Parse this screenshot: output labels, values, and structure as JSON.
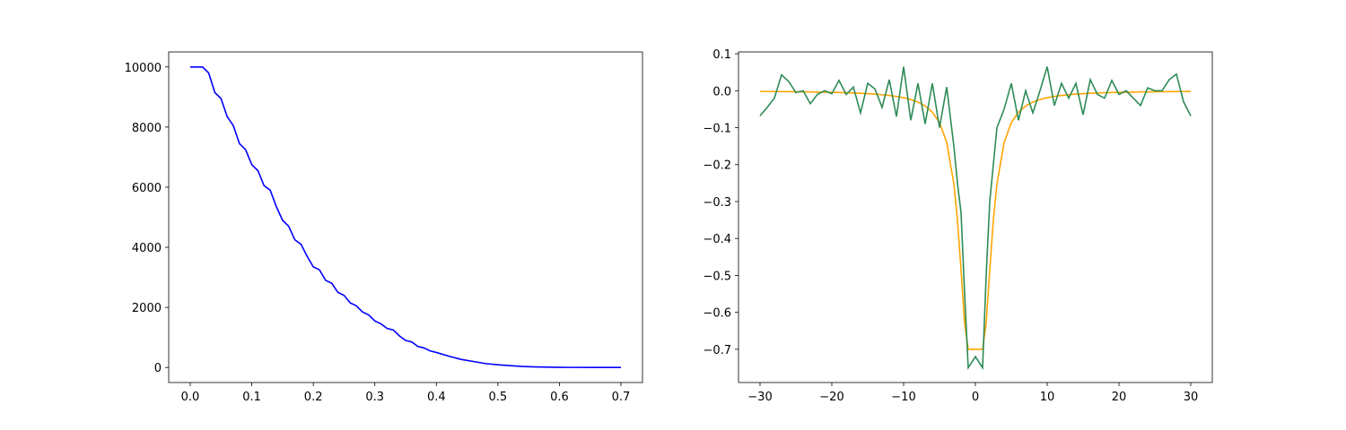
{
  "chart_data": [
    {
      "type": "line",
      "color": "#0000ff",
      "x": [
        0,
        0.02,
        0.03,
        0.04,
        0.05,
        0.06,
        0.07,
        0.08,
        0.09,
        0.1,
        0.11,
        0.12,
        0.13,
        0.14,
        0.15,
        0.16,
        0.17,
        0.18,
        0.19,
        0.2,
        0.21,
        0.22,
        0.23,
        0.24,
        0.25,
        0.26,
        0.27,
        0.28,
        0.29,
        0.3,
        0.31,
        0.32,
        0.33,
        0.34,
        0.35,
        0.36,
        0.37,
        0.38,
        0.39,
        0.4,
        0.42,
        0.44,
        0.46,
        0.48,
        0.5,
        0.52,
        0.54,
        0.56,
        0.58,
        0.6,
        0.62,
        0.65,
        0.7
      ],
      "values": [
        10000,
        10000,
        9800,
        9150,
        8950,
        8350,
        8050,
        7450,
        7250,
        6750,
        6550,
        6050,
        5900,
        5350,
        4900,
        4700,
        4250,
        4100,
        3700,
        3350,
        3250,
        2900,
        2800,
        2500,
        2400,
        2150,
        2050,
        1850,
        1750,
        1550,
        1450,
        1300,
        1250,
        1050,
        900,
        850,
        700,
        650,
        550,
        500,
        380,
        270,
        200,
        130,
        90,
        60,
        35,
        20,
        12,
        6,
        3,
        1,
        0
      ],
      "xlim": [
        -0.035,
        0.735
      ],
      "ylim": [
        -500,
        10500
      ],
      "xticks": [
        {
          "value": 0,
          "label": "0.0"
        },
        0.1,
        0.2,
        0.3,
        0.4,
        0.5,
        0.6,
        0.7
      ],
      "yticks": [
        0,
        2000,
        4000,
        6000,
        8000,
        10000
      ]
    },
    {
      "type": "line",
      "x": [
        -30,
        -29,
        -28,
        -27,
        -26,
        -25,
        -24,
        -23,
        -22,
        -21,
        -20,
        -19,
        -18,
        -17,
        -16,
        -15,
        -14,
        -13,
        -12,
        -11,
        -10,
        -9,
        -8,
        -7,
        -6,
        -5,
        -4,
        -3,
        -2.5,
        -2,
        -1.5,
        -1,
        0,
        1,
        1.5,
        2,
        2.5,
        3,
        4,
        5,
        6,
        7,
        8,
        9,
        10,
        11,
        12,
        13,
        14,
        15,
        16,
        17,
        18,
        19,
        20,
        21,
        22,
        23,
        24,
        25,
        26,
        27,
        28,
        29,
        30
      ],
      "series": [
        {
          "color": "#ffa500",
          "values": [
            -0.0019,
            -0.002,
            -0.0022,
            -0.0023,
            -0.0025,
            -0.0027,
            -0.003,
            -0.0032,
            -0.0036,
            -0.0039,
            -0.0043,
            -0.0048,
            -0.0054,
            -0.0061,
            -0.0069,
            -0.0079,
            -0.0092,
            -0.0108,
            -0.0128,
            -0.0154,
            -0.0189,
            -0.0238,
            -0.0307,
            -0.0412,
            -0.0578,
            -0.0863,
            -0.14,
            -0.252,
            -0.35,
            -0.485,
            -0.63,
            -0.7,
            -0.7,
            -0.7,
            -0.63,
            -0.485,
            -0.35,
            -0.252,
            -0.14,
            -0.0863,
            -0.0578,
            -0.0412,
            -0.0307,
            -0.0238,
            -0.0189,
            -0.0154,
            -0.0128,
            -0.0108,
            -0.0092,
            -0.0079,
            -0.0069,
            -0.0061,
            -0.0054,
            -0.0048,
            -0.0043,
            -0.0039,
            -0.0036,
            -0.0032,
            -0.003,
            -0.0027,
            -0.0025,
            -0.0023,
            -0.0022,
            -0.002,
            -0.0019
          ]
        },
        {
          "color": "#2e8b57",
          "values": [
            -0.068,
            -0.045,
            -0.02,
            0.043,
            0.025,
            -0.005,
            0.0,
            -0.035,
            -0.01,
            0.0,
            -0.008,
            0.028,
            -0.01,
            0.01,
            -0.06,
            0.02,
            0.005,
            -0.045,
            0.03,
            -0.07,
            0.065,
            -0.08,
            0.02,
            -0.09,
            0.02,
            -0.1,
            0.01,
            -0.15,
            -0.25,
            -0.33,
            -0.55,
            -0.75,
            -0.72,
            -0.75,
            -0.5,
            -0.3,
            -0.2,
            -0.1,
            -0.05,
            0.02,
            -0.08,
            0.0,
            -0.06,
            0.0,
            0.065,
            -0.04,
            0.02,
            -0.02,
            0.02,
            -0.065,
            0.03,
            -0.01,
            -0.02,
            0.028,
            -0.01,
            0.0,
            -0.02,
            -0.04,
            0.008,
            0.0,
            0.0,
            0.03,
            0.045,
            -0.03,
            -0.068
          ]
        }
      ],
      "xlim": [
        -33,
        33
      ],
      "ylim": [
        -0.79,
        0.105
      ],
      "xticks": [
        {
          "value": -30,
          "label": "−30"
        },
        {
          "value": -20,
          "label": "−20"
        },
        {
          "value": -10,
          "label": "−10"
        },
        0,
        10,
        20,
        30
      ],
      "yticks": [
        0.1,
        {
          "value": 0,
          "label": "0.0"
        },
        {
          "value": -0.1,
          "label": "−0.1"
        },
        {
          "value": -0.2,
          "label": "−0.2"
        },
        {
          "value": -0.3,
          "label": "−0.3"
        },
        {
          "value": -0.4,
          "label": "−0.4"
        },
        {
          "value": -0.5,
          "label": "−0.5"
        },
        {
          "value": -0.6,
          "label": "−0.6"
        },
        {
          "value": -0.7,
          "label": "−0.7"
        }
      ]
    }
  ]
}
